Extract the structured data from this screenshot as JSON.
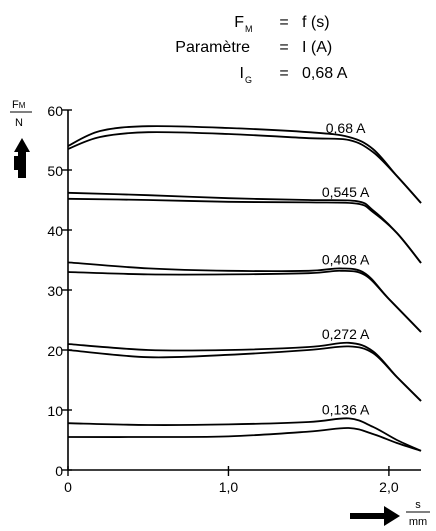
{
  "header": {
    "lines": [
      {
        "sym": "F",
        "sub": "M",
        "eq": "=",
        "val": "f (s)"
      },
      {
        "sym": "Paramètre",
        "sub": "",
        "eq": "=",
        "val": "I (A)"
      },
      {
        "sym": "I",
        "sub": "G",
        "eq": "=",
        "val": "0,68 A"
      }
    ]
  },
  "chart_data": {
    "type": "line",
    "title": "",
    "ylabel": {
      "num": "F",
      "num_sub": "M",
      "den": "N"
    },
    "xlabel": {
      "num": "s",
      "den": "mm"
    },
    "xlim": [
      0,
      2.2
    ],
    "ylim": [
      0,
      60
    ],
    "x_ticks": [
      {
        "v": 0,
        "t": "0"
      },
      {
        "v": 1,
        "t": "1,0"
      },
      {
        "v": 2,
        "t": "2,0"
      }
    ],
    "y_ticks": [
      {
        "v": 0,
        "t": "0"
      },
      {
        "v": 10,
        "t": "10"
      },
      {
        "v": 20,
        "t": "20"
      },
      {
        "v": 30,
        "t": "30"
      },
      {
        "v": 40,
        "t": "40"
      },
      {
        "v": 50,
        "t": "50"
      },
      {
        "v": 60,
        "t": "60"
      }
    ],
    "grid": false,
    "series": [
      {
        "name": "0,68 A",
        "curves": [
          [
            [
              0,
              53.5
            ],
            [
              0.2,
              55.5
            ],
            [
              0.5,
              56.3
            ],
            [
              1.0,
              56.0
            ],
            [
              1.5,
              55.3
            ],
            [
              1.75,
              55.0
            ],
            [
              1.9,
              53.0
            ],
            [
              2.05,
              49.0
            ],
            [
              2.2,
              44.5
            ]
          ],
          [
            [
              0,
              54.0
            ],
            [
              0.2,
              56.5
            ],
            [
              0.5,
              57.3
            ],
            [
              1.0,
              57.0
            ],
            [
              1.5,
              56.3
            ],
            [
              1.75,
              55.5
            ],
            [
              1.9,
              53.5
            ],
            [
              2.05,
              49.0
            ],
            [
              2.2,
              44.5
            ]
          ]
        ]
      },
      {
        "name": "0,545 A",
        "curves": [
          [
            [
              0,
              45.2
            ],
            [
              0.5,
              45.0
            ],
            [
              1.0,
              44.7
            ],
            [
              1.5,
              44.6
            ],
            [
              1.8,
              44.4
            ],
            [
              1.9,
              43.0
            ],
            [
              2.05,
              39.5
            ],
            [
              2.2,
              34.5
            ]
          ],
          [
            [
              0,
              46.2
            ],
            [
              0.5,
              45.8
            ],
            [
              1.0,
              45.3
            ],
            [
              1.5,
              45.0
            ],
            [
              1.8,
              44.8
            ],
            [
              1.9,
              43.3
            ],
            [
              2.05,
              39.5
            ],
            [
              2.2,
              34.5
            ]
          ]
        ]
      },
      {
        "name": "0,408 A",
        "curves": [
          [
            [
              0,
              33.0
            ],
            [
              0.5,
              32.6
            ],
            [
              1.0,
              32.6
            ],
            [
              1.5,
              32.8
            ],
            [
              1.7,
              33.2
            ],
            [
              1.85,
              32.5
            ],
            [
              2.0,
              28.5
            ],
            [
              2.2,
              23.0
            ]
          ],
          [
            [
              0,
              34.6
            ],
            [
              0.5,
              33.6
            ],
            [
              1.0,
              33.2
            ],
            [
              1.5,
              33.2
            ],
            [
              1.7,
              33.6
            ],
            [
              1.85,
              32.8
            ],
            [
              2.0,
              28.5
            ],
            [
              2.2,
              23.0
            ]
          ]
        ]
      },
      {
        "name": "0,272 A",
        "curves": [
          [
            [
              0,
              20.0
            ],
            [
              0.5,
              18.8
            ],
            [
              1.0,
              19.2
            ],
            [
              1.5,
              20.0
            ],
            [
              1.75,
              20.6
            ],
            [
              1.9,
              19.5
            ],
            [
              2.05,
              15.5
            ],
            [
              2.2,
              11.5
            ]
          ],
          [
            [
              0,
              21.0
            ],
            [
              0.5,
              20.0
            ],
            [
              1.0,
              20.0
            ],
            [
              1.5,
              20.5
            ],
            [
              1.75,
              21.2
            ],
            [
              1.9,
              19.8
            ],
            [
              2.05,
              15.5
            ],
            [
              2.2,
              11.5
            ]
          ]
        ]
      },
      {
        "name": "0,136 A",
        "curves": [
          [
            [
              0,
              5.5
            ],
            [
              0.5,
              5.5
            ],
            [
              1.0,
              5.6
            ],
            [
              1.5,
              6.4
            ],
            [
              1.75,
              7.0
            ],
            [
              1.9,
              6.0
            ],
            [
              2.05,
              4.5
            ],
            [
              2.2,
              3.2
            ]
          ],
          [
            [
              0,
              7.8
            ],
            [
              0.5,
              7.5
            ],
            [
              1.0,
              7.6
            ],
            [
              1.5,
              8.0
            ],
            [
              1.75,
              8.6
            ],
            [
              1.9,
              7.2
            ],
            [
              2.05,
              5.0
            ],
            [
              2.2,
              3.2
            ]
          ]
        ]
      }
    ]
  }
}
